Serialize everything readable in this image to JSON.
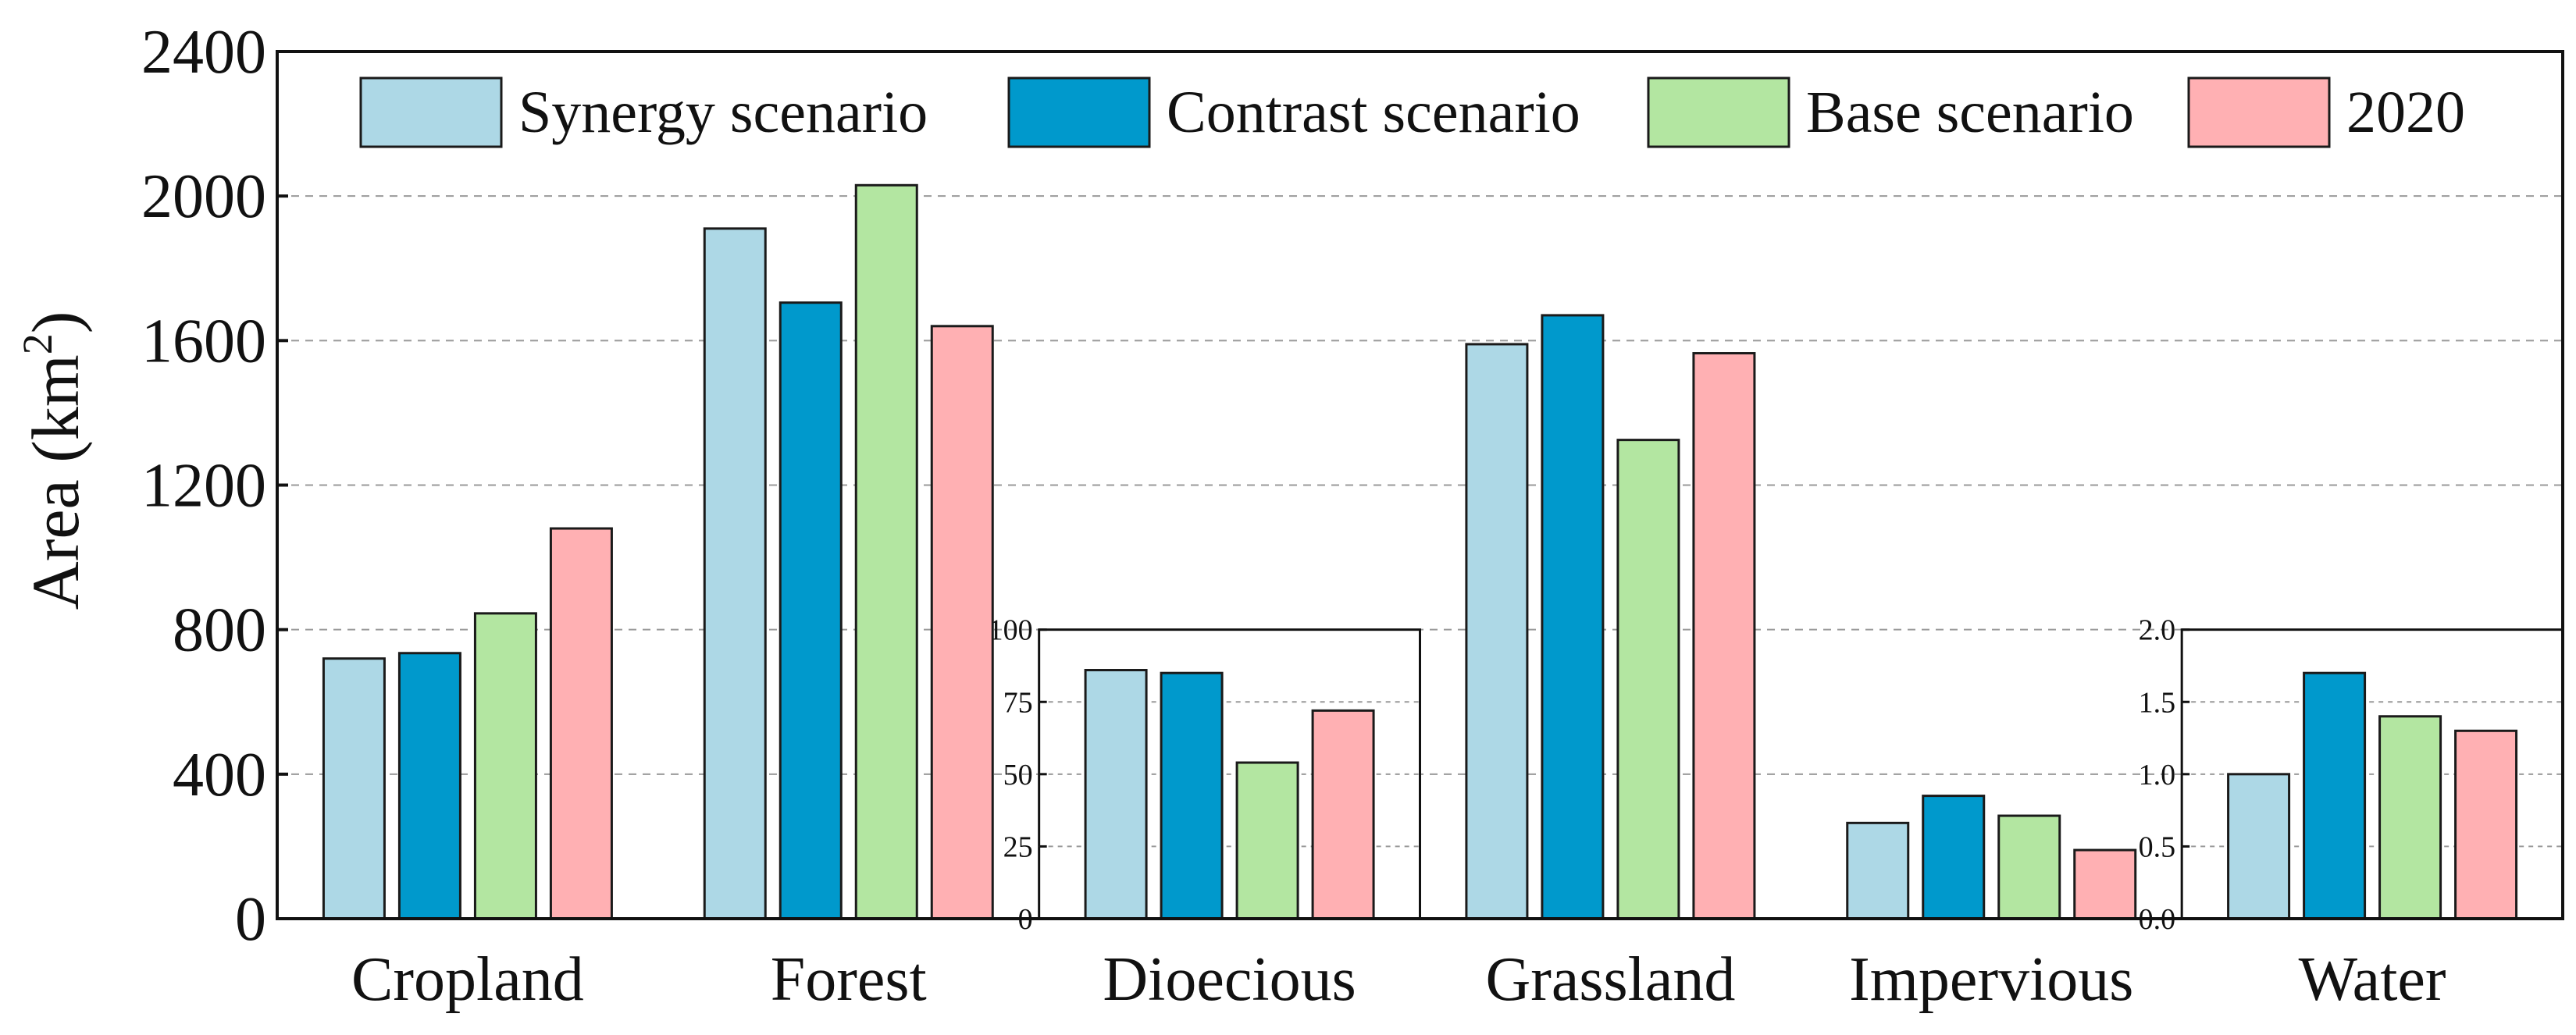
{
  "chart_data": {
    "type": "bar",
    "title": "",
    "xlabel": "",
    "ylabel": "Area (km",
    "ylabel_sup": "2",
    "ylabel_close": ")",
    "ylim": [
      0,
      2400
    ],
    "yticks": [
      0,
      400,
      800,
      1200,
      1600,
      2000,
      2400
    ],
    "grid": true,
    "legend_position": "top",
    "categories": [
      "Cropland",
      "Forest",
      "Dioecious",
      "Grassland",
      "Impervious",
      "Water"
    ],
    "series": [
      {
        "name": "Synergy scenario",
        "color": "#add8e6",
        "values": [
          720,
          1910,
          86,
          1590,
          265,
          1.0
        ]
      },
      {
        "name": "Contrast scenario",
        "color": "#0099cc",
        "values": [
          735,
          1705,
          85,
          1670,
          340,
          1.7
        ]
      },
      {
        "name": "Base scenario",
        "color": "#b3e6a1",
        "values": [
          845,
          2030,
          54,
          1325,
          285,
          1.4
        ]
      },
      {
        "name": "2020",
        "color": "#ffb0b3",
        "values": [
          1080,
          1640,
          72,
          1565,
          190,
          1.3
        ]
      }
    ],
    "insets": [
      {
        "category": "Dioecious",
        "ylim": [
          0,
          100
        ],
        "yticks": [
          "0",
          "25",
          "50",
          "75",
          "100"
        ]
      },
      {
        "category": "Water",
        "ylim": [
          0,
          2.0
        ],
        "yticks": [
          "0.0",
          "0.5",
          "1.0",
          "1.5",
          "2.0"
        ]
      }
    ]
  }
}
